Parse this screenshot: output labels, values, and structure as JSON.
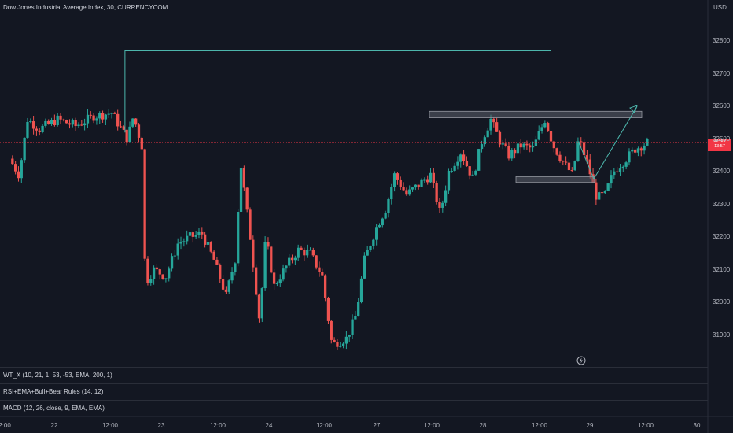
{
  "header": {
    "title": "Dow Jones Industrial Average Index, 30, CURRENCYCOM",
    "currency": "USD"
  },
  "price_tag": {
    "line1": "32489",
    "line2": "13:57",
    "color": "#f23645"
  },
  "indicators": [
    {
      "label": "WT_X (10, 21, 1, 53, -53, EMA, 200, 1)"
    },
    {
      "label": "RSI+EMA+Bull+Bear Rules (14, 12)"
    },
    {
      "label": "MACD (12, 26, close, 9, EMA, EMA)"
    }
  ],
  "icons": {
    "replay": "lightning-icon"
  },
  "colors": {
    "background": "#131722",
    "up": "#26a69a",
    "down": "#ef5350",
    "drawing": "#4db6ac",
    "zone": "#5d606b"
  },
  "chart_data": {
    "type": "candlestick",
    "title": "Dow Jones Industrial Average Index, 30, CURRENCYCOM",
    "y_ticks": [
      32800,
      32700,
      32600,
      32500,
      32400,
      32300,
      32200,
      32100,
      32000,
      31900
    ],
    "x_ticks": [
      "2:00",
      "22",
      "12:00",
      "23",
      "12:00",
      "24",
      "12:00",
      "27",
      "12:00",
      "28",
      "12:00",
      "29",
      "12:00",
      "30"
    ],
    "ylim": [
      31840,
      32870
    ],
    "last_price": 32489,
    "price_path": [
      {
        "t": 0,
        "p": 32440
      },
      {
        "t": 0.8,
        "p": 32390
      },
      {
        "t": 1.5,
        "p": 32560
      },
      {
        "t": 2.5,
        "p": 32530
      },
      {
        "t": 4,
        "p": 32560
      },
      {
        "t": 5.5,
        "p": 32540
      },
      {
        "t": 7,
        "p": 32570
      },
      {
        "t": 8.5,
        "p": 32580
      },
      {
        "t": 9.8,
        "p": 32500
      },
      {
        "t": 10.3,
        "p": 32570
      },
      {
        "t": 11,
        "p": 32480
      },
      {
        "t": 11.3,
        "p": 32060
      },
      {
        "t": 12,
        "p": 32100
      },
      {
        "t": 13,
        "p": 32080
      },
      {
        "t": 14,
        "p": 32180
      },
      {
        "t": 15,
        "p": 32200
      },
      {
        "t": 16,
        "p": 32210
      },
      {
        "t": 17,
        "p": 32130
      },
      {
        "t": 18,
        "p": 32020
      },
      {
        "t": 18.8,
        "p": 32140
      },
      {
        "t": 19.2,
        "p": 32430
      },
      {
        "t": 20,
        "p": 32200
      },
      {
        "t": 20.8,
        "p": 31940
      },
      {
        "t": 21.3,
        "p": 32200
      },
      {
        "t": 22,
        "p": 32050
      },
      {
        "t": 23,
        "p": 32110
      },
      {
        "t": 24,
        "p": 32160
      },
      {
        "t": 25,
        "p": 32150
      },
      {
        "t": 26,
        "p": 32080
      },
      {
        "t": 26.8,
        "p": 31870
      },
      {
        "t": 27.3,
        "p": 31880
      },
      {
        "t": 28,
        "p": 31890
      },
      {
        "t": 28.8,
        "p": 31960
      },
      {
        "t": 29.5,
        "p": 32130
      },
      {
        "t": 30.5,
        "p": 32230
      },
      {
        "t": 31.3,
        "p": 32290
      },
      {
        "t": 32,
        "p": 32390
      },
      {
        "t": 33,
        "p": 32330
      },
      {
        "t": 34,
        "p": 32360
      },
      {
        "t": 35,
        "p": 32390
      },
      {
        "t": 35.8,
        "p": 32270
      },
      {
        "t": 36.5,
        "p": 32400
      },
      {
        "t": 37.5,
        "p": 32460
      },
      {
        "t": 38.5,
        "p": 32380
      },
      {
        "t": 39.3,
        "p": 32500
      },
      {
        "t": 40,
        "p": 32560
      },
      {
        "t": 40.8,
        "p": 32490
      },
      {
        "t": 41.5,
        "p": 32450
      },
      {
        "t": 42.5,
        "p": 32480
      },
      {
        "t": 43.5,
        "p": 32470
      },
      {
        "t": 44.5,
        "p": 32560
      },
      {
        "t": 45.2,
        "p": 32480
      },
      {
        "t": 46,
        "p": 32430
      },
      {
        "t": 46.8,
        "p": 32390
      },
      {
        "t": 47.3,
        "p": 32500
      },
      {
        "t": 48,
        "p": 32430
      },
      {
        "t": 48.8,
        "p": 32320
      },
      {
        "t": 49.5,
        "p": 32330
      },
      {
        "t": 50.2,
        "p": 32400
      },
      {
        "t": 51,
        "p": 32430
      },
      {
        "t": 52,
        "p": 32470
      },
      {
        "t": 53,
        "p": 32489
      }
    ],
    "annotations": {
      "high_line": 32770,
      "top_zone": [
        32570,
        32585
      ],
      "bottom_zone": [
        32372,
        32385
      ],
      "projection": [
        32489,
        32378,
        32600
      ]
    }
  }
}
